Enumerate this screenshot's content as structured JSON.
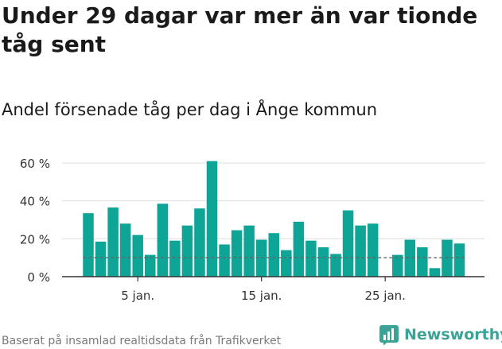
{
  "title": "Under 29 dagar var mer än var tionde tåg sent",
  "subtitle": "Andel försenade tåg per dag i Ånge kommun",
  "footer": "Baserat på insamlad realtidsdata från Trafikverket",
  "brand": "Newsworthy",
  "colors": {
    "bar": "#0ea597",
    "grid": "#dddddd",
    "axis": "#333333",
    "reference": "#666666",
    "brand": "#3aa396"
  },
  "chart_data": {
    "type": "bar",
    "x": [
      1,
      2,
      3,
      4,
      5,
      6,
      7,
      8,
      9,
      10,
      11,
      12,
      13,
      14,
      15,
      16,
      17,
      18,
      19,
      20,
      21,
      22,
      23,
      24,
      25,
      26,
      27,
      28,
      29,
      30,
      31
    ],
    "values": [
      33.5,
      18.5,
      36.5,
      28,
      22,
      11.5,
      38.5,
      19,
      27,
      36,
      61,
      17,
      24.5,
      27,
      19.5,
      23,
      14,
      29,
      19,
      15.5,
      12,
      35,
      27,
      28,
      0,
      11.5,
      19.5,
      15.5,
      4.5,
      19.5,
      17.5
    ],
    "reference_line": 10,
    "ylim": [
      0,
      65
    ],
    "yticks": [
      0,
      20,
      40,
      60
    ],
    "ytick_labels": [
      "0 %",
      "20 %",
      "40 %",
      "60 %"
    ],
    "xticks": [
      5,
      15,
      25
    ],
    "xtick_labels": [
      "5 jan.",
      "15 jan.",
      "25 jan."
    ],
    "grid": true
  }
}
